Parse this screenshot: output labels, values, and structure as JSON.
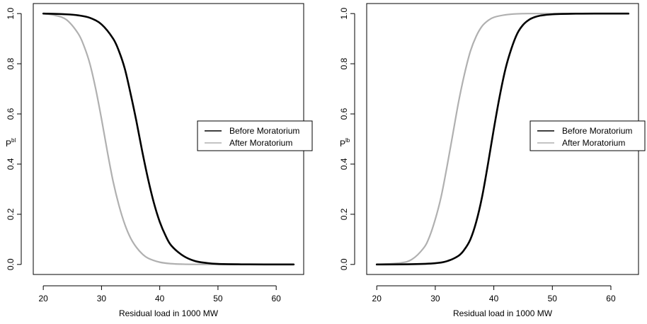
{
  "chart_data": [
    {
      "type": "line",
      "xlabel": "Residual load  in 1000 MW",
      "ylabel": "P",
      "ylabel_superscript": "bl",
      "xlim": [
        20,
        63
      ],
      "ylim": [
        0,
        1
      ],
      "x_ticks": [
        20,
        30,
        40,
        50,
        60
      ],
      "y_ticks": [
        0.0,
        0.2,
        0.4,
        0.6,
        0.8,
        1.0
      ],
      "y_tick_labels": [
        "0.0",
        "0.2",
        "0.4",
        "0.6",
        "0.8",
        "1.0"
      ],
      "grid": false,
      "legend_position": "right",
      "series": [
        {
          "name": "Before Moratorium",
          "color": "#000000",
          "x": [
            20,
            24,
            26,
            28,
            30,
            32,
            33,
            34,
            35,
            36,
            37,
            38,
            39,
            40,
            41,
            42,
            44,
            46,
            48,
            50,
            54,
            58,
            63
          ],
          "y": [
            1.0,
            0.997,
            0.993,
            0.983,
            0.957,
            0.9,
            0.85,
            0.78,
            0.68,
            0.57,
            0.45,
            0.34,
            0.245,
            0.17,
            0.115,
            0.075,
            0.035,
            0.014,
            0.006,
            0.002,
            0.0005,
            0.0001,
            0.0
          ]
        },
        {
          "name": "After Moratorium",
          "color": "#b0b0b0",
          "x": [
            20,
            22,
            24,
            26,
            27,
            28,
            29,
            30,
            31,
            32,
            33,
            34,
            35,
            36,
            37,
            38,
            40,
            42,
            44,
            46,
            50,
            55,
            63
          ],
          "y": [
            1.0,
            0.993,
            0.975,
            0.92,
            0.87,
            0.8,
            0.7,
            0.58,
            0.45,
            0.33,
            0.235,
            0.16,
            0.105,
            0.068,
            0.042,
            0.025,
            0.009,
            0.003,
            0.001,
            0.0003,
            0.0,
            0.0,
            0.0
          ]
        }
      ]
    },
    {
      "type": "line",
      "xlabel": "Residual load in 1000 MW",
      "ylabel": "P",
      "ylabel_superscript": "lb",
      "xlim": [
        20,
        63
      ],
      "ylim": [
        0,
        1
      ],
      "x_ticks": [
        20,
        30,
        40,
        50,
        60
      ],
      "y_ticks": [
        0.0,
        0.2,
        0.4,
        0.6,
        0.8,
        1.0
      ],
      "y_tick_labels": [
        "0.0",
        "0.2",
        "0.4",
        "0.6",
        "0.8",
        "1.0"
      ],
      "grid": false,
      "legend_position": "right",
      "series": [
        {
          "name": "Before Moratorium",
          "color": "#000000",
          "x": [
            20,
            26,
            30,
            32,
            34,
            35,
            36,
            37,
            38,
            39,
            40,
            41,
            42,
            43,
            44,
            45,
            46,
            47,
            48,
            50,
            54,
            58,
            63
          ],
          "y": [
            0.0,
            0.001,
            0.005,
            0.013,
            0.035,
            0.06,
            0.1,
            0.17,
            0.27,
            0.4,
            0.54,
            0.67,
            0.78,
            0.86,
            0.92,
            0.955,
            0.975,
            0.986,
            0.992,
            0.997,
            0.9995,
            1.0,
            1.0
          ]
        },
        {
          "name": "After Moratorium",
          "color": "#b0b0b0",
          "x": [
            20,
            24,
            26,
            28,
            29,
            30,
            31,
            32,
            33,
            34,
            35,
            36,
            37,
            38,
            39,
            40,
            42,
            44,
            46,
            50,
            55,
            63
          ],
          "y": [
            0.0,
            0.006,
            0.02,
            0.065,
            0.11,
            0.18,
            0.27,
            0.39,
            0.52,
            0.65,
            0.76,
            0.85,
            0.91,
            0.95,
            0.972,
            0.985,
            0.995,
            0.999,
            1.0,
            1.0,
            1.0,
            1.0
          ]
        }
      ]
    }
  ]
}
